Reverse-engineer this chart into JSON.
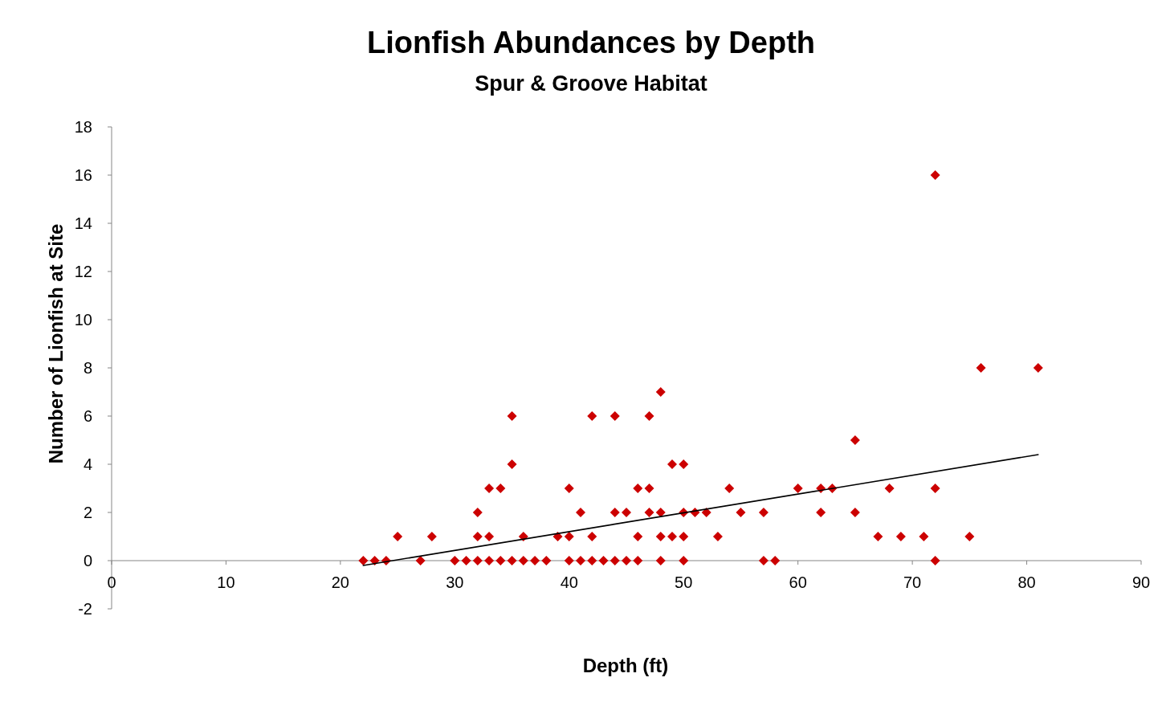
{
  "chart_data": {
    "type": "scatter",
    "title": "Lionfish Abundances by Depth",
    "subtitle": "Spur & Groove Habitat",
    "xlabel": "Depth (ft)",
    "ylabel": "Number of Lionfish at Site",
    "xlim": [
      0,
      90
    ],
    "xticks": [
      0,
      10,
      20,
      30,
      40,
      50,
      60,
      70,
      80,
      90
    ],
    "ylim": [
      -2,
      18
    ],
    "yticks": [
      -2,
      0,
      2,
      4,
      6,
      8,
      10,
      12,
      14,
      16,
      18
    ],
    "grid": false,
    "series": [
      {
        "marker": "diamond",
        "color": "#cc0000",
        "x": [
          22,
          23,
          24,
          25,
          27,
          28,
          30,
          31,
          32,
          32,
          32,
          33,
          33,
          33,
          34,
          34,
          35,
          35,
          35,
          36,
          36,
          37,
          38,
          39,
          40,
          40,
          40,
          41,
          41,
          42,
          42,
          42,
          43,
          44,
          44,
          44,
          45,
          45,
          46,
          46,
          46,
          47,
          47,
          47,
          48,
          48,
          48,
          48,
          49,
          49,
          50,
          50,
          50,
          50,
          51,
          52,
          53,
          54,
          55,
          57,
          57,
          58,
          60,
          62,
          62,
          63,
          65,
          65,
          67,
          68,
          69,
          71,
          72,
          72,
          72,
          75,
          76,
          81
        ],
        "values": [
          0,
          0,
          0,
          1,
          0,
          1,
          0,
          0,
          0,
          1,
          2,
          0,
          1,
          3,
          0,
          3,
          0,
          4,
          6,
          0,
          1,
          0,
          0,
          1,
          0,
          1,
          3,
          0,
          2,
          0,
          1,
          6,
          0,
          0,
          2,
          6,
          0,
          2,
          0,
          1,
          3,
          2,
          3,
          6,
          0,
          1,
          2,
          7,
          1,
          4,
          0,
          1,
          2,
          4,
          2,
          2,
          1,
          3,
          2,
          0,
          2,
          0,
          3,
          2,
          3,
          3,
          2,
          5,
          1,
          3,
          1,
          1,
          0,
          3,
          16,
          1,
          8,
          8
        ]
      },
      {
        "type": "line",
        "color": "#000000",
        "x": [
          22,
          81
        ],
        "values": [
          -0.2,
          4.4
        ]
      }
    ]
  }
}
